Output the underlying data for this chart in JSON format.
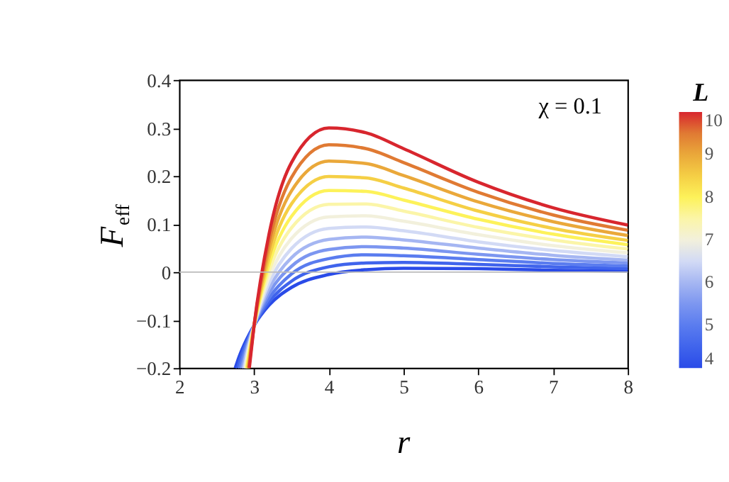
{
  "chart_data": {
    "type": "line",
    "xlabel": "r",
    "ylabel": "F$_{eff}$",
    "clabel": "L",
    "annotations": [
      "χ = 0.1"
    ],
    "xlim": [
      2,
      8
    ],
    "xticks": [
      2,
      3,
      4,
      5,
      6,
      7,
      8
    ],
    "ylim": [
      -0.2,
      0.4
    ],
    "yticks": [
      -0.2,
      -0.1,
      0,
      0.1,
      0.2,
      0.3,
      0.4
    ],
    "clim": [
      4,
      10
    ],
    "cticks": [
      4,
      5,
      6,
      7,
      8,
      9,
      10
    ],
    "grid": false,
    "marker": "none",
    "line_style": "solid",
    "ref_lines": [
      {
        "axis": "y",
        "value": 0,
        "color": "#bbbbbb"
      }
    ],
    "series": [
      {
        "color": "#2a4be8",
        "x": [
          2.747,
          2.8,
          2.9,
          3.0,
          3.2,
          3.5,
          4.0,
          4.5,
          5,
          6,
          7,
          8
        ],
        "values": [
          -0.2,
          -0.176,
          -0.14,
          -0.111,
          -0.069,
          -0.032,
          -0.005,
          0.005,
          0.008,
          0.007,
          0.004,
          0.002
        ]
      },
      {
        "color": "#4064ec",
        "x": [
          2.78,
          2.8,
          2.9,
          3.0,
          3.2,
          3.5,
          4.0,
          4.5,
          5,
          6,
          7,
          8
        ],
        "values": [
          -0.2,
          -0.189,
          -0.146,
          -0.111,
          -0.062,
          -0.019,
          0.011,
          0.019,
          0.02,
          0.016,
          0.011,
          0.007
        ]
      },
      {
        "color": "#5a7cef",
        "x": [
          2.806,
          2.9,
          3.0,
          3.2,
          3.5,
          4.0,
          4.5,
          5,
          6,
          7,
          8
        ],
        "values": [
          -0.2,
          -0.152,
          -0.111,
          -0.054,
          -0.004,
          0.028,
          0.036,
          0.034,
          0.026,
          0.018,
          0.013
        ]
      },
      {
        "color": "#7c96f0",
        "x": [
          2.832,
          2.9,
          3.0,
          3.2,
          3.5,
          4.0,
          4.5,
          5,
          6,
          7,
          8
        ],
        "values": [
          -0.2,
          -0.159,
          -0.111,
          -0.044,
          0.012,
          0.047,
          0.053,
          0.05,
          0.037,
          0.026,
          0.019
        ]
      },
      {
        "color": "#a5b6f2",
        "x": [
          2.852,
          2.9,
          3.0,
          3.2,
          3.5,
          4.0,
          4.5,
          5,
          6,
          7,
          8
        ],
        "values": [
          -0.2,
          -0.166,
          -0.111,
          -0.034,
          0.03,
          0.068,
          0.073,
          0.067,
          0.05,
          0.035,
          0.025
        ]
      },
      {
        "color": "#d2daf5",
        "x": [
          2.869,
          2.9,
          3.0,
          3.2,
          3.5,
          4.0,
          4.5,
          5,
          6,
          7,
          8
        ],
        "values": [
          -0.2,
          -0.175,
          -0.111,
          -0.023,
          0.049,
          0.091,
          0.094,
          0.086,
          0.063,
          0.045,
          0.032
        ]
      },
      {
        "color": "#f2f0dc",
        "x": [
          2.883,
          2.9,
          3.0,
          3.2,
          3.5,
          4.0,
          4.5,
          5,
          6,
          7,
          8
        ],
        "values": [
          -0.2,
          -0.184,
          -0.111,
          -0.011,
          0.07,
          0.115,
          0.117,
          0.106,
          0.078,
          0.055,
          0.04
        ]
      },
      {
        "color": "#fbf5a8",
        "x": [
          2.893,
          2.9,
          3.0,
          3.2,
          3.5,
          4.0,
          4.5,
          5,
          6,
          7,
          8
        ],
        "values": [
          -0.2,
          -0.193,
          -0.111,
          0.002,
          0.092,
          0.141,
          0.142,
          0.127,
          0.093,
          0.067,
          0.048
        ]
      },
      {
        "color": "#fdf25a",
        "x": [
          2.903,
          3.0,
          3.2,
          3.5,
          4.0,
          4.5,
          5,
          6,
          7,
          8
        ],
        "values": [
          -0.2,
          -0.111,
          0.016,
          0.116,
          0.17,
          0.168,
          0.15,
          0.11,
          0.079,
          0.057
        ]
      },
      {
        "color": "#f5cf45",
        "x": [
          2.914,
          3.0,
          3.2,
          3.5,
          4.0,
          4.5,
          5,
          6,
          7,
          8
        ],
        "values": [
          -0.2,
          -0.111,
          0.03,
          0.142,
          0.199,
          0.196,
          0.175,
          0.127,
          0.091,
          0.066
        ]
      },
      {
        "color": "#eaa83a",
        "x": [
          2.923,
          3.0,
          3.2,
          3.5,
          4.0,
          4.5,
          5,
          6,
          7,
          8
        ],
        "values": [
          -0.2,
          -0.111,
          0.046,
          0.169,
          0.231,
          0.226,
          0.201,
          0.146,
          0.105,
          0.076
        ]
      },
      {
        "color": "#e07a33",
        "x": [
          2.93,
          3.0,
          3.2,
          3.5,
          4.0,
          4.5,
          5,
          6,
          7,
          8
        ],
        "values": [
          -0.2,
          -0.111,
          0.062,
          0.197,
          0.265,
          0.257,
          0.228,
          0.166,
          0.119,
          0.087
        ]
      },
      {
        "color": "#d8262e",
        "x": [
          2.936,
          3.0,
          3.2,
          3.5,
          4.0,
          4.5,
          5,
          6,
          7,
          8
        ],
        "values": [
          -0.2,
          -0.111,
          0.079,
          0.228,
          0.3,
          0.29,
          0.257,
          0.187,
          0.134,
          0.098
        ]
      }
    ]
  }
}
